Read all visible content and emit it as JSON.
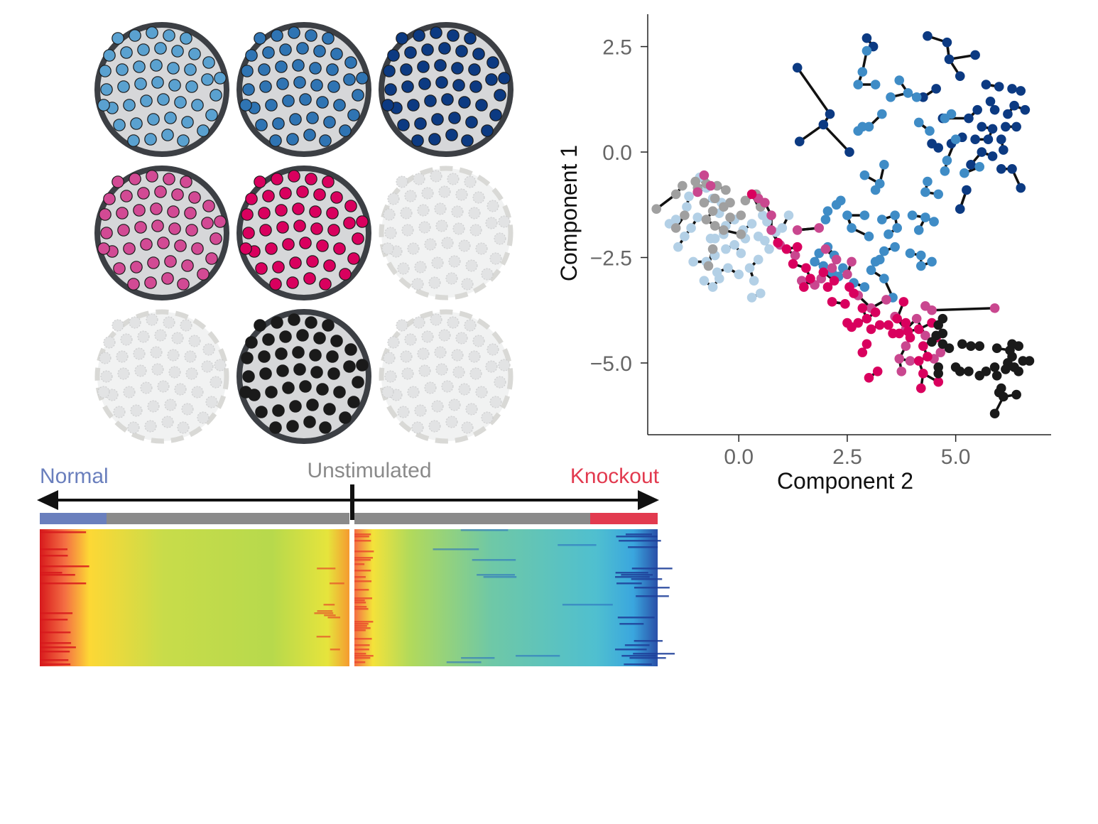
{
  "wells": {
    "rows": [
      [
        {
          "state": "active",
          "color": "#5aa1d0"
        },
        {
          "state": "active",
          "color": "#2f74b3"
        },
        {
          "state": "active",
          "color": "#0c3a82"
        }
      ],
      [
        {
          "state": "active",
          "color": "#d24a94"
        },
        {
          "state": "active",
          "color": "#d9005e"
        },
        {
          "state": "empty",
          "color": "#e2e3e4"
        }
      ],
      [
        {
          "state": "empty",
          "color": "#e2e3e4"
        },
        {
          "state": "active",
          "color": "#1a1a1a"
        },
        {
          "state": "empty",
          "color": "#e2e3e4"
        }
      ]
    ],
    "well_border": "#3c3f44",
    "well_fill": "#d6d7d9"
  },
  "chart_data": {
    "type": "scatter",
    "title": "",
    "xlabel": "Component 2",
    "ylabel": "Component 1",
    "xlim": [
      -2.1,
      7.2
    ],
    "ylim": [
      -6.6,
      3.2
    ],
    "xticks": [
      0.0,
      2.5,
      5.0
    ],
    "yticks": [
      2.5,
      0.0,
      -2.5,
      -5.0
    ],
    "xtick_labels": [
      "0.0",
      "2.5",
      "5.0"
    ],
    "ytick_labels": [
      "2.5",
      "0.0",
      "−2.5",
      "−5.0"
    ],
    "grid": false,
    "legend": "none",
    "series": [
      {
        "color": "#0c3a82",
        "points": [
          [
            1.35,
            2.0
          ],
          [
            2.95,
            2.7
          ],
          [
            3.1,
            2.5
          ],
          [
            4.35,
            2.75
          ],
          [
            4.8,
            2.6
          ],
          [
            4.85,
            2.2
          ],
          [
            5.45,
            2.3
          ],
          [
            5.1,
            1.8
          ],
          [
            5.7,
            1.6
          ],
          [
            5.8,
            1.2
          ],
          [
            6.0,
            1.55
          ],
          [
            6.3,
            1.5
          ],
          [
            6.5,
            1.45
          ],
          [
            5.5,
            1.0
          ],
          [
            5.9,
            1.0
          ],
          [
            6.2,
            0.9
          ],
          [
            6.35,
            1.1
          ],
          [
            6.6,
            1.0
          ],
          [
            5.3,
            0.8
          ],
          [
            5.6,
            0.6
          ],
          [
            5.85,
            0.55
          ],
          [
            6.15,
            0.6
          ],
          [
            6.4,
            0.6
          ],
          [
            5.15,
            0.35
          ],
          [
            5.45,
            0.3
          ],
          [
            5.75,
            0.3
          ],
          [
            6.05,
            0.3
          ],
          [
            5.6,
            0.0
          ],
          [
            5.85,
            -0.1
          ],
          [
            6.1,
            0.05
          ],
          [
            5.35,
            -0.3
          ],
          [
            6.05,
            -0.4
          ],
          [
            6.3,
            -0.4
          ],
          [
            4.9,
            0.2
          ],
          [
            4.6,
            0.1
          ],
          [
            4.45,
            0.2
          ],
          [
            2.1,
            0.9
          ],
          [
            1.95,
            0.65
          ],
          [
            1.4,
            0.25
          ],
          [
            5.25,
            -0.9
          ],
          [
            6.5,
            -0.85
          ],
          [
            5.1,
            -1.35
          ],
          [
            4.7,
            0.8
          ],
          [
            4.25,
            1.3
          ],
          [
            4.55,
            1.5
          ],
          [
            2.55,
            0.0
          ]
        ]
      },
      {
        "color": "#3f8cc6",
        "points": [
          [
            2.95,
            2.4
          ],
          [
            2.85,
            1.9
          ],
          [
            2.75,
            1.6
          ],
          [
            3.15,
            1.6
          ],
          [
            3.5,
            1.3
          ],
          [
            3.7,
            1.7
          ],
          [
            3.9,
            1.4
          ],
          [
            4.1,
            1.3
          ],
          [
            3.3,
            0.9
          ],
          [
            3.0,
            0.6
          ],
          [
            2.75,
            0.5
          ],
          [
            2.85,
            0.6
          ],
          [
            4.15,
            0.7
          ],
          [
            4.4,
            0.5
          ],
          [
            4.75,
            0.8
          ],
          [
            4.9,
            0.9
          ],
          [
            5.0,
            0.3
          ],
          [
            4.8,
            -0.2
          ],
          [
            4.75,
            -0.45
          ],
          [
            4.6,
            -1.0
          ],
          [
            5.2,
            -0.5
          ],
          [
            5.55,
            -0.35
          ],
          [
            4.35,
            -0.7
          ],
          [
            4.3,
            -0.95
          ],
          [
            3.35,
            -0.3
          ],
          [
            3.25,
            -0.75
          ],
          [
            3.15,
            -0.9
          ],
          [
            2.9,
            -0.55
          ],
          [
            2.35,
            -1.15
          ],
          [
            2.5,
            -1.5
          ],
          [
            2.6,
            -1.8
          ],
          [
            2.9,
            -1.5
          ],
          [
            3.3,
            -1.6
          ],
          [
            3.6,
            -1.5
          ],
          [
            4.0,
            -1.5
          ],
          [
            4.3,
            -1.55
          ],
          [
            4.5,
            -1.65
          ],
          [
            4.15,
            -1.85
          ],
          [
            3.65,
            -1.8
          ],
          [
            3.45,
            -1.95
          ],
          [
            3.0,
            -2.0
          ],
          [
            3.35,
            -2.35
          ],
          [
            3.6,
            -2.25
          ],
          [
            3.25,
            -2.55
          ],
          [
            3.05,
            -2.8
          ],
          [
            2.9,
            -3.2
          ],
          [
            2.65,
            -3.1
          ],
          [
            2.4,
            -2.75
          ],
          [
            2.2,
            -2.45
          ],
          [
            2.05,
            -2.25
          ],
          [
            2.0,
            -1.6
          ],
          [
            2.05,
            -1.4
          ],
          [
            2.25,
            -1.25
          ],
          [
            1.85,
            -2.4
          ],
          [
            1.75,
            -2.6
          ],
          [
            1.95,
            -2.7
          ],
          [
            2.15,
            -2.85
          ],
          [
            2.3,
            -2.95
          ],
          [
            3.15,
            -2.6
          ],
          [
            3.35,
            -3.0
          ],
          [
            3.55,
            -3.45
          ],
          [
            3.95,
            -2.4
          ],
          [
            4.2,
            -2.45
          ],
          [
            4.2,
            -2.7
          ],
          [
            4.45,
            -2.6
          ]
        ]
      },
      {
        "color": "#b3d0e6",
        "points": [
          [
            -0.4,
            -1.2
          ],
          [
            -0.45,
            -1.45
          ],
          [
            -0.3,
            -1.75
          ],
          [
            -0.55,
            -2.05
          ],
          [
            -0.3,
            -2.3
          ],
          [
            -0.1,
            -2.2
          ],
          [
            -0.55,
            -2.45
          ],
          [
            -0.75,
            -2.6
          ],
          [
            -0.5,
            -2.85
          ],
          [
            -0.25,
            -2.75
          ],
          [
            0.0,
            -2.9
          ],
          [
            0.25,
            -2.75
          ],
          [
            0.45,
            -2.55
          ],
          [
            0.35,
            -3.05
          ],
          [
            0.5,
            -3.35
          ],
          [
            0.3,
            -3.45
          ],
          [
            -0.8,
            -3.05
          ],
          [
            -0.6,
            -3.2
          ],
          [
            -0.45,
            -3.0
          ],
          [
            -1.05,
            -2.6
          ],
          [
            -1.4,
            -2.25
          ],
          [
            -1.25,
            -2.0
          ],
          [
            -1.1,
            -1.8
          ],
          [
            -0.95,
            -1.55
          ],
          [
            -1.15,
            -1.05
          ],
          [
            -0.9,
            -0.6
          ],
          [
            -0.75,
            -0.85
          ],
          [
            -0.6,
            -1.1
          ],
          [
            -1.2,
            -1.3
          ],
          [
            -0.1,
            -1.6
          ],
          [
            0.1,
            -1.85
          ],
          [
            0.3,
            -1.7
          ],
          [
            0.45,
            -2.0
          ],
          [
            0.6,
            -2.1
          ],
          [
            0.85,
            -1.9
          ],
          [
            1.0,
            -1.8
          ],
          [
            1.15,
            -1.5
          ],
          [
            0.65,
            -1.65
          ],
          [
            0.7,
            -2.3
          ],
          [
            0.15,
            -2.05
          ],
          [
            0.55,
            -1.5
          ],
          [
            -0.35,
            -1.95
          ],
          [
            0.05,
            -2.4
          ],
          [
            -0.65,
            -2.05
          ],
          [
            -1.45,
            -1.6
          ],
          [
            -1.6,
            -1.7
          ]
        ]
      },
      {
        "color": "#a0a0a0",
        "points": [
          [
            -1.9,
            -1.35
          ],
          [
            -1.45,
            -1.0
          ],
          [
            -1.3,
            -0.8
          ],
          [
            -1.0,
            -0.7
          ],
          [
            -0.75,
            -0.75
          ],
          [
            -0.5,
            -0.8
          ],
          [
            -0.3,
            -0.9
          ],
          [
            -0.55,
            -1.1
          ],
          [
            -0.35,
            -1.3
          ],
          [
            -0.6,
            -1.4
          ],
          [
            -0.75,
            -1.6
          ],
          [
            -0.55,
            -1.75
          ],
          [
            -0.35,
            -1.85
          ],
          [
            -0.6,
            -2.3
          ],
          [
            -0.2,
            -1.55
          ],
          [
            0.05,
            -1.5
          ],
          [
            -0.8,
            -1.2
          ],
          [
            0.15,
            -1.15
          ],
          [
            0.4,
            -1.0
          ],
          [
            0.5,
            -1.3
          ],
          [
            0.05,
            -1.95
          ],
          [
            -1.25,
            -1.5
          ],
          [
            -1.45,
            -1.8
          ],
          [
            -0.2,
            -1.2
          ],
          [
            -0.7,
            -2.7
          ],
          [
            -0.95,
            -0.85
          ]
        ]
      },
      {
        "color": "#c9478f",
        "points": [
          [
            -0.8,
            -0.55
          ],
          [
            -0.65,
            -0.8
          ],
          [
            -0.95,
            -0.95
          ],
          [
            0.45,
            -1.1
          ],
          [
            0.6,
            -1.2
          ],
          [
            0.75,
            -1.5
          ],
          [
            0.95,
            -2.2
          ],
          [
            1.3,
            -2.45
          ],
          [
            1.45,
            -3.05
          ],
          [
            1.75,
            -3.15
          ],
          [
            1.9,
            -3.0
          ],
          [
            1.85,
            -1.8
          ],
          [
            2.0,
            -2.3
          ],
          [
            2.25,
            -2.55
          ],
          [
            2.15,
            -2.75
          ],
          [
            2.5,
            -2.9
          ],
          [
            2.75,
            -3.4
          ],
          [
            3.05,
            -3.7
          ],
          [
            3.4,
            -3.5
          ],
          [
            3.6,
            -3.9
          ],
          [
            3.85,
            -4.2
          ],
          [
            4.1,
            -3.95
          ],
          [
            4.3,
            -3.65
          ],
          [
            4.45,
            -3.75
          ],
          [
            4.3,
            -4.35
          ],
          [
            3.85,
            -4.6
          ],
          [
            3.7,
            -4.9
          ],
          [
            3.75,
            -5.2
          ],
          [
            3.95,
            -4.95
          ],
          [
            4.5,
            -4.9
          ],
          [
            4.65,
            -4.75
          ],
          [
            5.9,
            -3.7
          ],
          [
            2.6,
            -2.6
          ],
          [
            1.35,
            -1.85
          ],
          [
            0.75,
            -1.85
          ]
        ]
      },
      {
        "color": "#d9005e",
        "points": [
          [
            0.3,
            -1.0
          ],
          [
            0.9,
            -2.15
          ],
          [
            1.1,
            -2.3
          ],
          [
            1.35,
            -2.25
          ],
          [
            1.25,
            -2.65
          ],
          [
            1.55,
            -2.75
          ],
          [
            1.5,
            -3.2
          ],
          [
            1.65,
            -3.0
          ],
          [
            1.95,
            -2.85
          ],
          [
            2.2,
            -3.05
          ],
          [
            2.05,
            -3.2
          ],
          [
            2.15,
            -3.55
          ],
          [
            2.55,
            -3.2
          ],
          [
            2.65,
            -3.35
          ],
          [
            2.45,
            -3.6
          ],
          [
            2.85,
            -3.7
          ],
          [
            2.95,
            -3.95
          ],
          [
            3.15,
            -3.8
          ],
          [
            2.5,
            -4.05
          ],
          [
            2.6,
            -4.15
          ],
          [
            2.75,
            -4.05
          ],
          [
            3.25,
            -4.1
          ],
          [
            3.45,
            -4.1
          ],
          [
            3.65,
            -3.95
          ],
          [
            3.7,
            -4.3
          ],
          [
            3.85,
            -4.05
          ],
          [
            3.95,
            -4.4
          ],
          [
            4.15,
            -4.2
          ],
          [
            4.25,
            -4.6
          ],
          [
            4.15,
            -4.95
          ],
          [
            4.35,
            -4.85
          ],
          [
            4.55,
            -4.4
          ],
          [
            4.6,
            -5.45
          ],
          [
            4.25,
            -5.25
          ],
          [
            3.9,
            -4.25
          ],
          [
            3.05,
            -4.2
          ],
          [
            2.95,
            -4.55
          ],
          [
            2.85,
            -4.75
          ],
          [
            3.2,
            -5.2
          ],
          [
            3.0,
            -5.35
          ],
          [
            3.55,
            -4.3
          ],
          [
            3.8,
            -3.55
          ],
          [
            4.45,
            -4.05
          ],
          [
            4.2,
            -5.6
          ]
        ]
      },
      {
        "color": "#1a1a1a",
        "points": [
          [
            4.7,
            -3.95
          ],
          [
            4.6,
            -4.1
          ],
          [
            4.55,
            -4.35
          ],
          [
            4.7,
            -4.3
          ],
          [
            4.45,
            -4.5
          ],
          [
            4.7,
            -4.55
          ],
          [
            4.85,
            -4.65
          ],
          [
            5.15,
            -4.55
          ],
          [
            5.35,
            -4.6
          ],
          [
            5.55,
            -4.6
          ],
          [
            5.95,
            -4.65
          ],
          [
            6.3,
            -4.55
          ],
          [
            6.45,
            -4.6
          ],
          [
            6.25,
            -4.7
          ],
          [
            6.3,
            -4.85
          ],
          [
            6.2,
            -5.0
          ],
          [
            6.35,
            -5.1
          ],
          [
            6.55,
            -4.95
          ],
          [
            6.7,
            -4.95
          ],
          [
            6.45,
            -5.2
          ],
          [
            6.15,
            -5.15
          ],
          [
            5.9,
            -5.1
          ],
          [
            5.7,
            -5.2
          ],
          [
            5.55,
            -5.3
          ],
          [
            5.3,
            -5.2
          ],
          [
            5.1,
            -5.2
          ],
          [
            5.0,
            -5.1
          ],
          [
            5.95,
            -5.3
          ],
          [
            6.05,
            -5.6
          ],
          [
            6.0,
            -5.7
          ],
          [
            6.1,
            -5.8
          ],
          [
            5.9,
            -6.2
          ],
          [
            6.4,
            -5.75
          ],
          [
            4.6,
            -5.1
          ],
          [
            4.6,
            -5.25
          ]
        ]
      }
    ]
  },
  "heatmap": {
    "labels": {
      "left": "Normal",
      "center": "Unstimulated",
      "right": "Knockout"
    },
    "colors": {
      "left": "#6a7fbd",
      "center": "#8a8a8a",
      "right": "#e23a4f",
      "arrow": "#111111"
    }
  }
}
